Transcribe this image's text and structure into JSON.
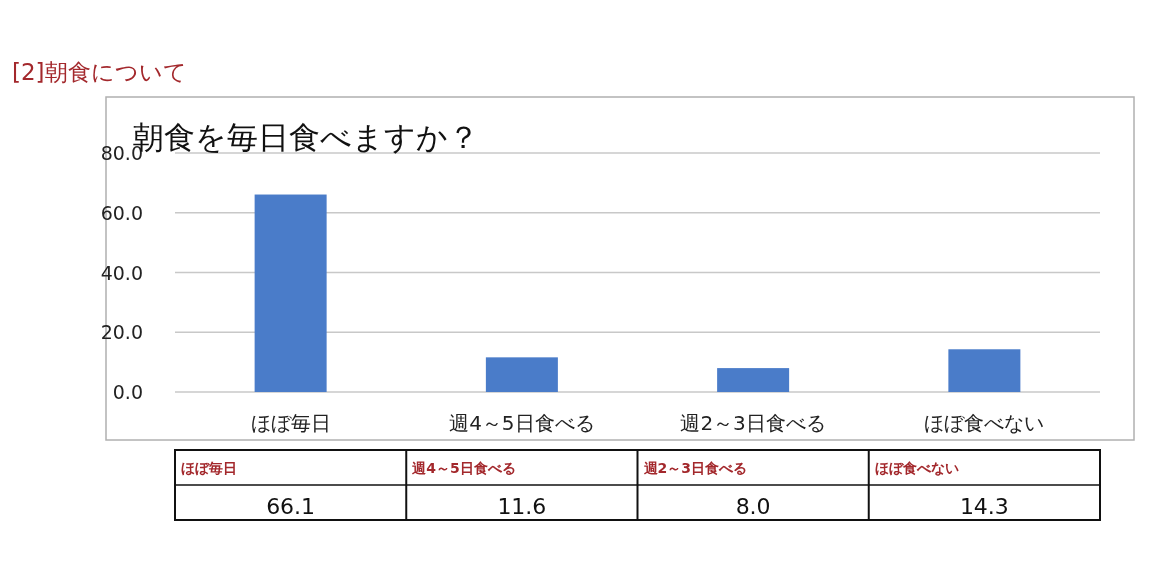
{
  "chart_data": {
    "type": "bar",
    "title": "[2]朝食について",
    "subtitle": "朝食を毎日食べますか？",
    "categories": [
      "ほぼ毎日",
      "週4～5日食べる",
      "週2～3日食べる",
      "ほぼ食べない"
    ],
    "values": [
      66.1,
      11.6,
      8.0,
      14.3
    ],
    "value_labels": [
      "66.1",
      "11.6",
      "8.0",
      "14.3"
    ],
    "color": "#4a7cc9",
    "ylim": [
      0,
      80
    ],
    "yticks": [
      {
        "value": 0,
        "label": "0.0"
      },
      {
        "value": 20,
        "label": "20.0"
      },
      {
        "value": 40,
        "label": "40.0"
      },
      {
        "value": 60,
        "label": "60.0"
      },
      {
        "value": 80,
        "label": "80.0"
      }
    ],
    "grid": "y"
  }
}
